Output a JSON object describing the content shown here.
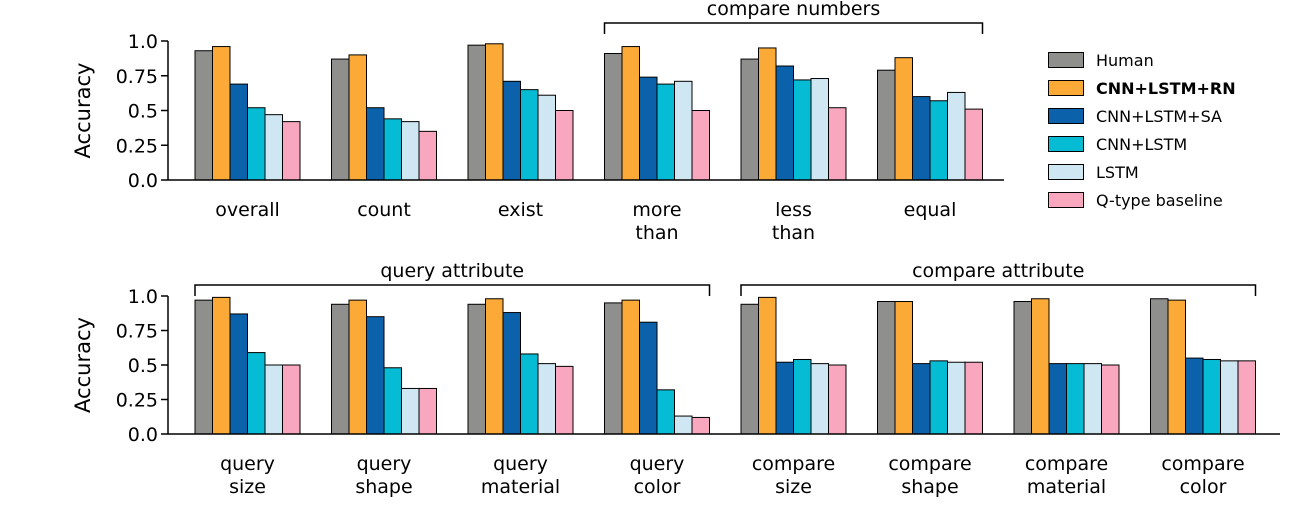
{
  "colors": {
    "Human": "#8f908e",
    "CNN+LSTM+RN": "#fbaa37",
    "CNN+LSTM+SA": "#0b62aa",
    "CNN+LSTM": "#05bcd4",
    "LSTM": "#cfe7f3",
    "Q-type baseline": "#f8a7be"
  },
  "legend": {
    "items": [
      {
        "label": "Human",
        "bold": false
      },
      {
        "label": "CNN+LSTM+RN",
        "bold": true
      },
      {
        "label": "CNN+LSTM+SA",
        "bold": false
      },
      {
        "label": "CNN+LSTM",
        "bold": false
      },
      {
        "label": "LSTM",
        "bold": false
      },
      {
        "label": "Q-type baseline",
        "bold": false
      }
    ]
  },
  "chart_data": [
    {
      "type": "bar",
      "ylabel": "Accuracy",
      "ylim": [
        0,
        1.0
      ],
      "yticks": [
        "0.0",
        "0.25",
        "0.5",
        "0.75",
        "1.0"
      ],
      "categories": [
        [
          "overall"
        ],
        [
          "count"
        ],
        [
          "exist"
        ],
        [
          "more",
          "than"
        ],
        [
          "less",
          "than"
        ],
        [
          "equal"
        ]
      ],
      "groups": [
        {
          "label": "compare numbers",
          "from": 3,
          "to": 5
        }
      ],
      "series": [
        {
          "name": "Human",
          "values": [
            0.93,
            0.87,
            0.97,
            0.91,
            0.87,
            0.79
          ]
        },
        {
          "name": "CNN+LSTM+RN",
          "values": [
            0.96,
            0.9,
            0.98,
            0.96,
            0.95,
            0.88
          ]
        },
        {
          "name": "CNN+LSTM+SA",
          "values": [
            0.69,
            0.52,
            0.71,
            0.74,
            0.82,
            0.6
          ]
        },
        {
          "name": "CNN+LSTM",
          "values": [
            0.52,
            0.44,
            0.65,
            0.69,
            0.72,
            0.57
          ]
        },
        {
          "name": "LSTM",
          "values": [
            0.47,
            0.42,
            0.61,
            0.71,
            0.73,
            0.63
          ]
        },
        {
          "name": "Q-type baseline",
          "values": [
            0.42,
            0.35,
            0.5,
            0.5,
            0.52,
            0.51
          ]
        }
      ]
    },
    {
      "type": "bar",
      "ylabel": "Accuracy",
      "ylim": [
        0,
        1.0
      ],
      "yticks": [
        "0.0",
        "0.25",
        "0.5",
        "0.75",
        "1.0"
      ],
      "categories": [
        [
          "query",
          "size"
        ],
        [
          "query",
          "shape"
        ],
        [
          "query",
          "material"
        ],
        [
          "query",
          "color"
        ],
        [
          "compare",
          "size"
        ],
        [
          "compare",
          "shape"
        ],
        [
          "compare",
          "material"
        ],
        [
          "compare",
          "color"
        ]
      ],
      "groups": [
        {
          "label": "query attribute",
          "from": 0,
          "to": 3
        },
        {
          "label": "compare attribute",
          "from": 4,
          "to": 7
        }
      ],
      "series": [
        {
          "name": "Human",
          "values": [
            0.97,
            0.94,
            0.94,
            0.95,
            0.94,
            0.96,
            0.96,
            0.98
          ]
        },
        {
          "name": "CNN+LSTM+RN",
          "values": [
            0.99,
            0.97,
            0.98,
            0.97,
            0.99,
            0.96,
            0.98,
            0.97
          ]
        },
        {
          "name": "CNN+LSTM+SA",
          "values": [
            0.87,
            0.85,
            0.88,
            0.81,
            0.52,
            0.51,
            0.51,
            0.55
          ]
        },
        {
          "name": "CNN+LSTM",
          "values": [
            0.59,
            0.48,
            0.58,
            0.32,
            0.54,
            0.53,
            0.51,
            0.54
          ]
        },
        {
          "name": "LSTM",
          "values": [
            0.5,
            0.33,
            0.51,
            0.13,
            0.51,
            0.52,
            0.51,
            0.53
          ]
        },
        {
          "name": "Q-type baseline",
          "values": [
            0.5,
            0.33,
            0.49,
            0.12,
            0.5,
            0.52,
            0.5,
            0.53
          ]
        }
      ]
    }
  ]
}
